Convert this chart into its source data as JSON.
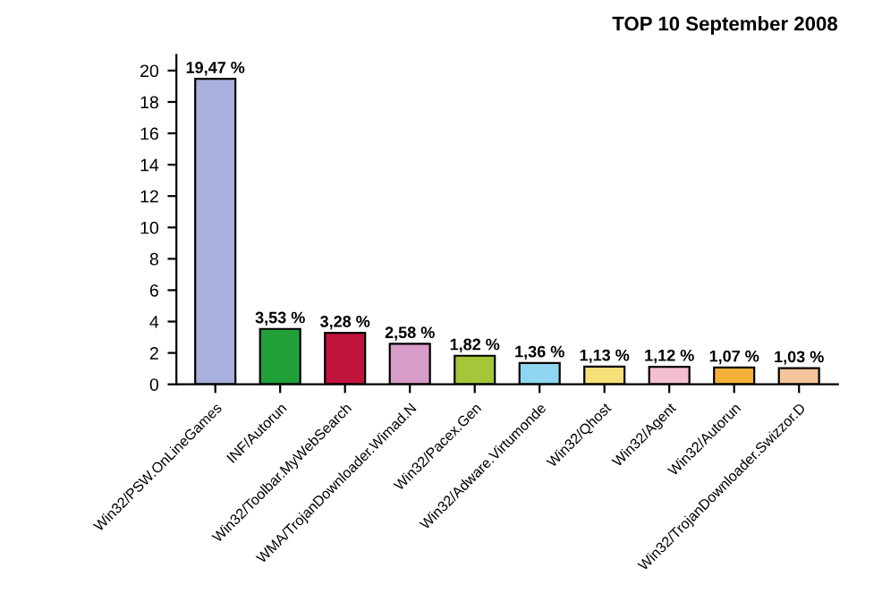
{
  "chart_data": {
    "type": "bar",
    "title": "TOP 10 September 2008",
    "categories": [
      "Win32/PSW.OnLineGames",
      "INF/Autorun",
      "Win32/Toolbar.MyWebSearch",
      "WMA/TrojanDownloader.Wimad.N",
      "Win32/Pacex.Gen",
      "Win32/Adware.Virtumonde",
      "Win32/Qhost",
      "Win32/Agent",
      "Win32/Autorun",
      "Win32/TrojanDownloader.Swizzor.D"
    ],
    "values": [
      19.47,
      3.53,
      3.28,
      2.58,
      1.82,
      1.36,
      1.13,
      1.12,
      1.07,
      1.03
    ],
    "value_labels": [
      "19,47 %",
      "3,53 %",
      "3,28 %",
      "2,58 %",
      "1,82 %",
      "1,36 %",
      "1,13 %",
      "1,12 %",
      "1,07 %",
      "1,03 %"
    ],
    "colors": [
      "#aab0dd",
      "#22a03a",
      "#c0143c",
      "#d89cc8",
      "#a6c63a",
      "#8fd6f0",
      "#f5e07a",
      "#f4c0d0",
      "#f5b13a",
      "#f5c49a"
    ],
    "ylim": [
      0,
      21
    ],
    "yticks": [
      0,
      2,
      4,
      6,
      8,
      10,
      12,
      14,
      16,
      18,
      20
    ],
    "grid": false
  }
}
